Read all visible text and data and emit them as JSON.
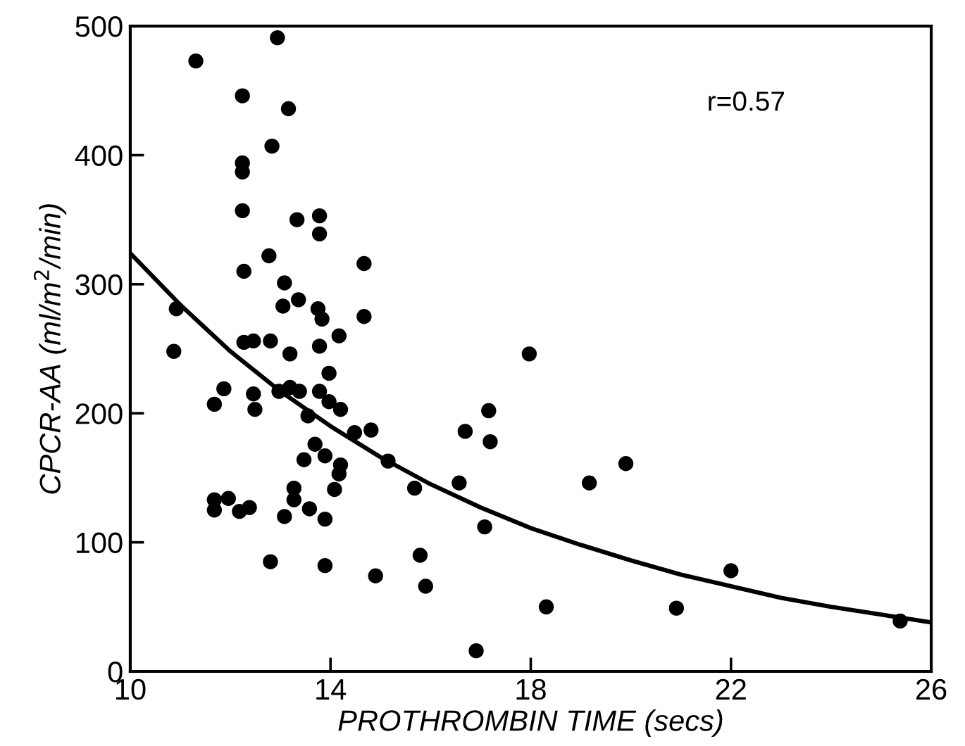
{
  "chart_data": {
    "type": "scatter",
    "xlabel": "PROTHROMBIN TIME (secs)",
    "ylabel": "CPCR-AA (ml/m$^{2}$/min)",
    "annotations": [
      "r=0.57"
    ],
    "xlim": [
      10,
      26
    ],
    "xticks": [
      10,
      14,
      18,
      22,
      26
    ],
    "ylim": [
      0,
      500
    ],
    "yticks": [
      0,
      100,
      200,
      300,
      400,
      500
    ],
    "grid": false,
    "legend": false,
    "marker": "circle",
    "series": [
      {
        "color": "#000000",
        "x": [
          12.94,
          11.31,
          12.24,
          13.16,
          12.83,
          12.24,
          12.24,
          12.24,
          13.33,
          13.78,
          13.78,
          12.77,
          14.67,
          12.27,
          13.08,
          13.36,
          13.05,
          13.75,
          13.83,
          14.67,
          14.17,
          12.27,
          12.46,
          12.8,
          13.19,
          13.78,
          10.92,
          10.87,
          13.97,
          11.87,
          11.68,
          12.46,
          12.49,
          12.97,
          13.19,
          13.38,
          13.78,
          13.97,
          14.2,
          13.55,
          14.48,
          14.81,
          13.69,
          13.47,
          13.89,
          15.15,
          14.2,
          14.17,
          14.08,
          15.68,
          13.27,
          13.27,
          11.68,
          11.68,
          11.96,
          12.18,
          12.38,
          13.58,
          13.08,
          13.89,
          12.8,
          13.89,
          14.9,
          15.79,
          15.9,
          17.97,
          17.16,
          16.69,
          17.19,
          19.9,
          16.57,
          19.17,
          17.08,
          18.31,
          20.91,
          22.0,
          16.91,
          25.38
        ],
        "values": [
          491,
          473,
          446,
          436,
          407,
          394,
          387,
          357,
          350,
          353,
          339,
          322,
          316,
          310,
          301,
          288,
          283,
          281,
          273,
          275,
          260,
          255,
          256,
          256,
          246,
          252,
          281,
          248,
          231,
          219,
          207,
          215,
          203,
          217,
          220,
          217,
          217,
          209,
          203,
          198,
          185,
          187,
          176,
          164,
          167,
          163,
          160,
          153,
          141,
          142,
          142,
          133,
          133,
          125,
          134,
          124,
          127,
          126,
          120,
          118,
          85,
          82,
          74,
          90,
          66,
          246,
          202,
          186,
          178,
          161,
          146,
          146,
          112,
          50,
          49,
          78,
          16,
          39
        ]
      },
      {
        "type": "line",
        "color": "#000000",
        "line_style": "solid",
        "marker": "none",
        "x": [
          10,
          11,
          12,
          13,
          14,
          15,
          16,
          17,
          18,
          19,
          20,
          21,
          22,
          23,
          24,
          25,
          26
        ],
        "values": [
          324,
          284,
          248,
          217,
          190,
          166,
          145,
          127,
          111,
          98,
          86,
          75,
          66,
          57,
          50,
          44,
          38
        ]
      }
    ]
  }
}
